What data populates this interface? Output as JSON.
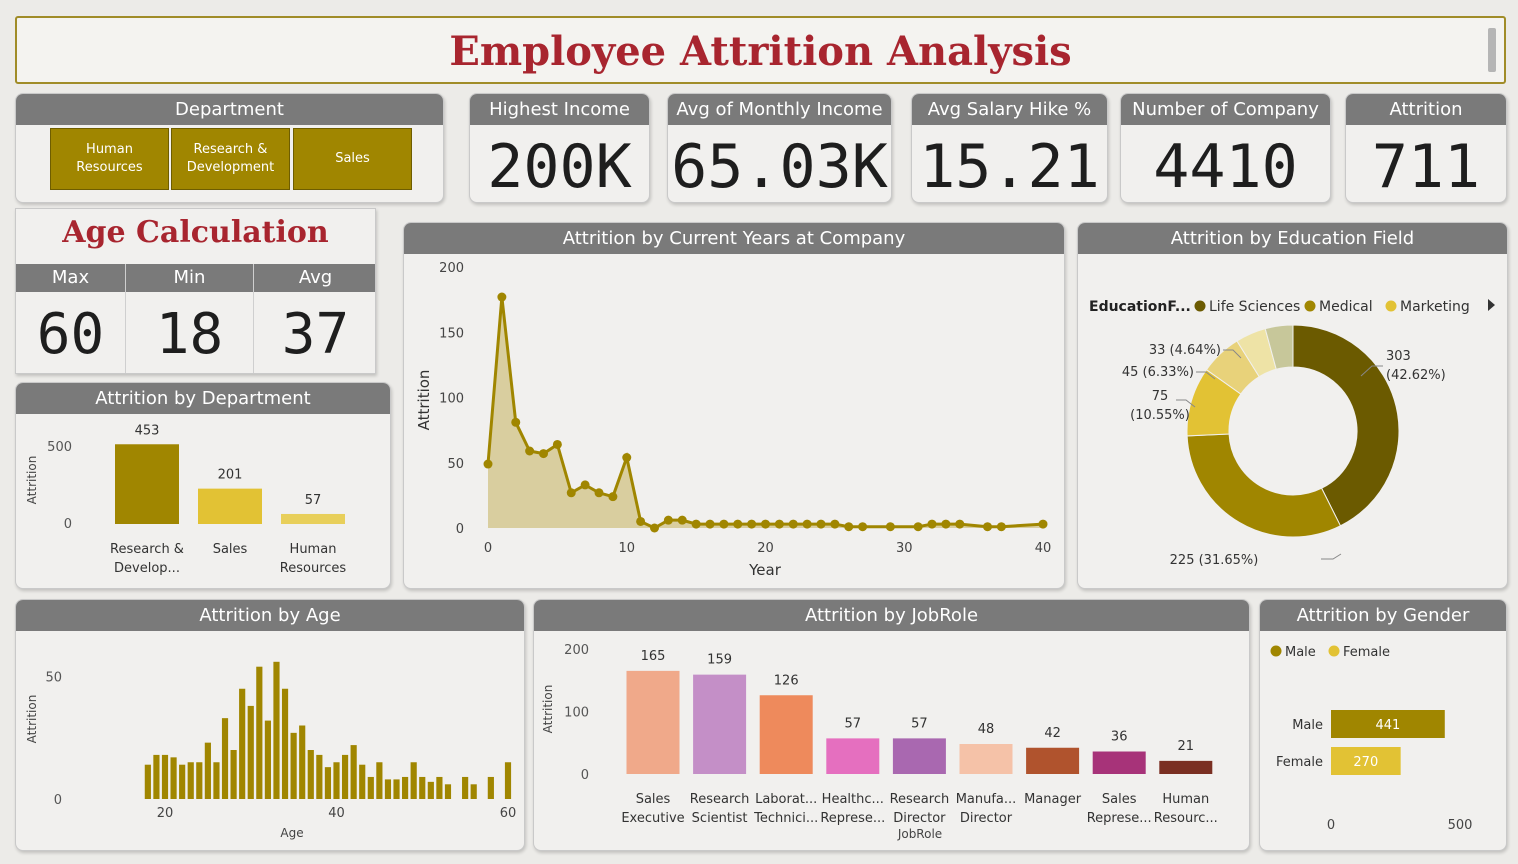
{
  "title": "Employee Attrition Analysis",
  "department_filter": {
    "heading": "Department",
    "buttons": [
      "Human\nResources",
      "Research &\nDevelopment",
      "Sales"
    ]
  },
  "kpis": [
    {
      "label": "Highest Income",
      "value": "200K"
    },
    {
      "label": "Avg of Monthly Income",
      "value": "65.03K"
    },
    {
      "label": "Avg Salary Hike %",
      "value": "15.21"
    },
    {
      "label": "Number of Company",
      "value": "4410"
    },
    {
      "label": "Attrition",
      "value": "711"
    }
  ],
  "age_calc": {
    "title": "Age Calculation",
    "max_label": "Max",
    "max": "60",
    "min_label": "Min",
    "min": "18",
    "avg_label": "Avg",
    "avg": "37"
  },
  "colors": {
    "gold": "#a08600",
    "olive_dark": "#6b5a00",
    "yellow": "#e2c234",
    "panel_head": "#7a7a7a",
    "title_red": "#a8252f"
  },
  "chart_data": [
    {
      "id": "dept",
      "type": "bar",
      "title": "Attrition by Department",
      "ylabel": "Attrition",
      "categories": [
        "Research & Develop...",
        "Sales",
        "Human Resources"
      ],
      "values": [
        453,
        201,
        57
      ],
      "yticks": [
        "500",
        "0"
      ],
      "ylim": [
        0,
        500
      ]
    },
    {
      "id": "years",
      "type": "area",
      "title": "Attrition by Current Years at Company",
      "xlabel": "Year",
      "ylabel": "Attrition",
      "x": [
        0,
        1,
        2,
        3,
        4,
        5,
        6,
        7,
        8,
        9,
        10,
        11,
        12,
        13,
        14,
        15,
        16,
        17,
        18,
        19,
        20,
        21,
        22,
        23,
        24,
        25,
        26,
        27,
        29,
        31,
        32,
        33,
        34,
        36,
        37,
        40
      ],
      "y": [
        49,
        177,
        81,
        59,
        57,
        64,
        27,
        33,
        27,
        24,
        54,
        5,
        0,
        6,
        6,
        3,
        3,
        3,
        3,
        3,
        3,
        3,
        3,
        3,
        3,
        3,
        1,
        1,
        1,
        1,
        3,
        3,
        3,
        1,
        1,
        3
      ],
      "xticks": [
        "0",
        "10",
        "20",
        "30",
        "40"
      ],
      "yticks": [
        "200",
        "150",
        "100",
        "50",
        "0"
      ],
      "xlim": [
        0,
        40
      ],
      "ylim": [
        0,
        200
      ]
    },
    {
      "id": "edu",
      "type": "pie",
      "title": "Attrition by Education Field",
      "legend_title": "EducationF...",
      "legend": [
        "Life Sciences",
        "Medical",
        "Marketing"
      ],
      "slices": [
        {
          "value": 303,
          "label": "303\n(42.62%)",
          "color": "#6b5a00"
        },
        {
          "value": 225,
          "label": "225 (31.65%)",
          "color": "#a08600"
        },
        {
          "value": 75,
          "label": "75\n(10.55%)",
          "color": "#e2c234"
        },
        {
          "value": 45,
          "label": "45 (6.33%)",
          "color": "#e8d27a"
        },
        {
          "value": 33,
          "label": "33 (4.64%)",
          "color": "#eee3a6"
        },
        {
          "value": 30,
          "label": "",
          "color": "#c7c79a"
        }
      ]
    },
    {
      "id": "age",
      "type": "bar",
      "title": "Attrition by Age",
      "xlabel": "Age",
      "ylabel": "Attrition",
      "x": [
        18,
        19,
        20,
        21,
        22,
        23,
        24,
        25,
        26,
        27,
        28,
        29,
        30,
        31,
        32,
        33,
        34,
        35,
        36,
        37,
        38,
        39,
        40,
        41,
        42,
        43,
        44,
        45,
        46,
        47,
        48,
        49,
        50,
        51,
        52,
        53,
        55,
        56,
        58,
        60
      ],
      "values": [
        14,
        18,
        18,
        17,
        14,
        15,
        15,
        23,
        15,
        33,
        20,
        45,
        38,
        54,
        32,
        56,
        45,
        27,
        30,
        20,
        18,
        13,
        15,
        18,
        22,
        14,
        9,
        15,
        8,
        8,
        9,
        15,
        9,
        7,
        9,
        6,
        9,
        6,
        9,
        15
      ],
      "xticks": [
        "20",
        "40",
        "60"
      ],
      "yticks": [
        "50",
        "0"
      ],
      "xlim": [
        16,
        60
      ],
      "ylim": [
        0,
        60
      ]
    },
    {
      "id": "job",
      "type": "bar",
      "title": "Attrition by JobRole",
      "xlabel": "JobRole",
      "ylabel": "Attrition",
      "categories": [
        "Sales Executive",
        "Research Scientist",
        "Laborat... Technici...",
        "Healthc... Represe...",
        "Research Director",
        "Manufa... Director",
        "Manager",
        "Sales Represe...",
        "Human Resourc..."
      ],
      "values": [
        165,
        159,
        126,
        57,
        57,
        48,
        42,
        36,
        21
      ],
      "colors": [
        "#f0a98a",
        "#c48fc7",
        "#ee8a5c",
        "#e56fbf",
        "#a968b0",
        "#f5c2a8",
        "#b0532d",
        "#a73379",
        "#7a2f22"
      ],
      "yticks": [
        "200",
        "100",
        "0"
      ],
      "ylim": [
        0,
        200
      ]
    },
    {
      "id": "gender",
      "type": "bar",
      "title": "Attrition by Gender",
      "legend": [
        "Male",
        "Female"
      ],
      "categories": [
        "Male",
        "Female"
      ],
      "values": [
        441,
        270
      ],
      "colors": [
        "#a08600",
        "#e2c234"
      ],
      "xticks": [
        "0",
        "500"
      ],
      "xlim": [
        0,
        500
      ]
    }
  ]
}
